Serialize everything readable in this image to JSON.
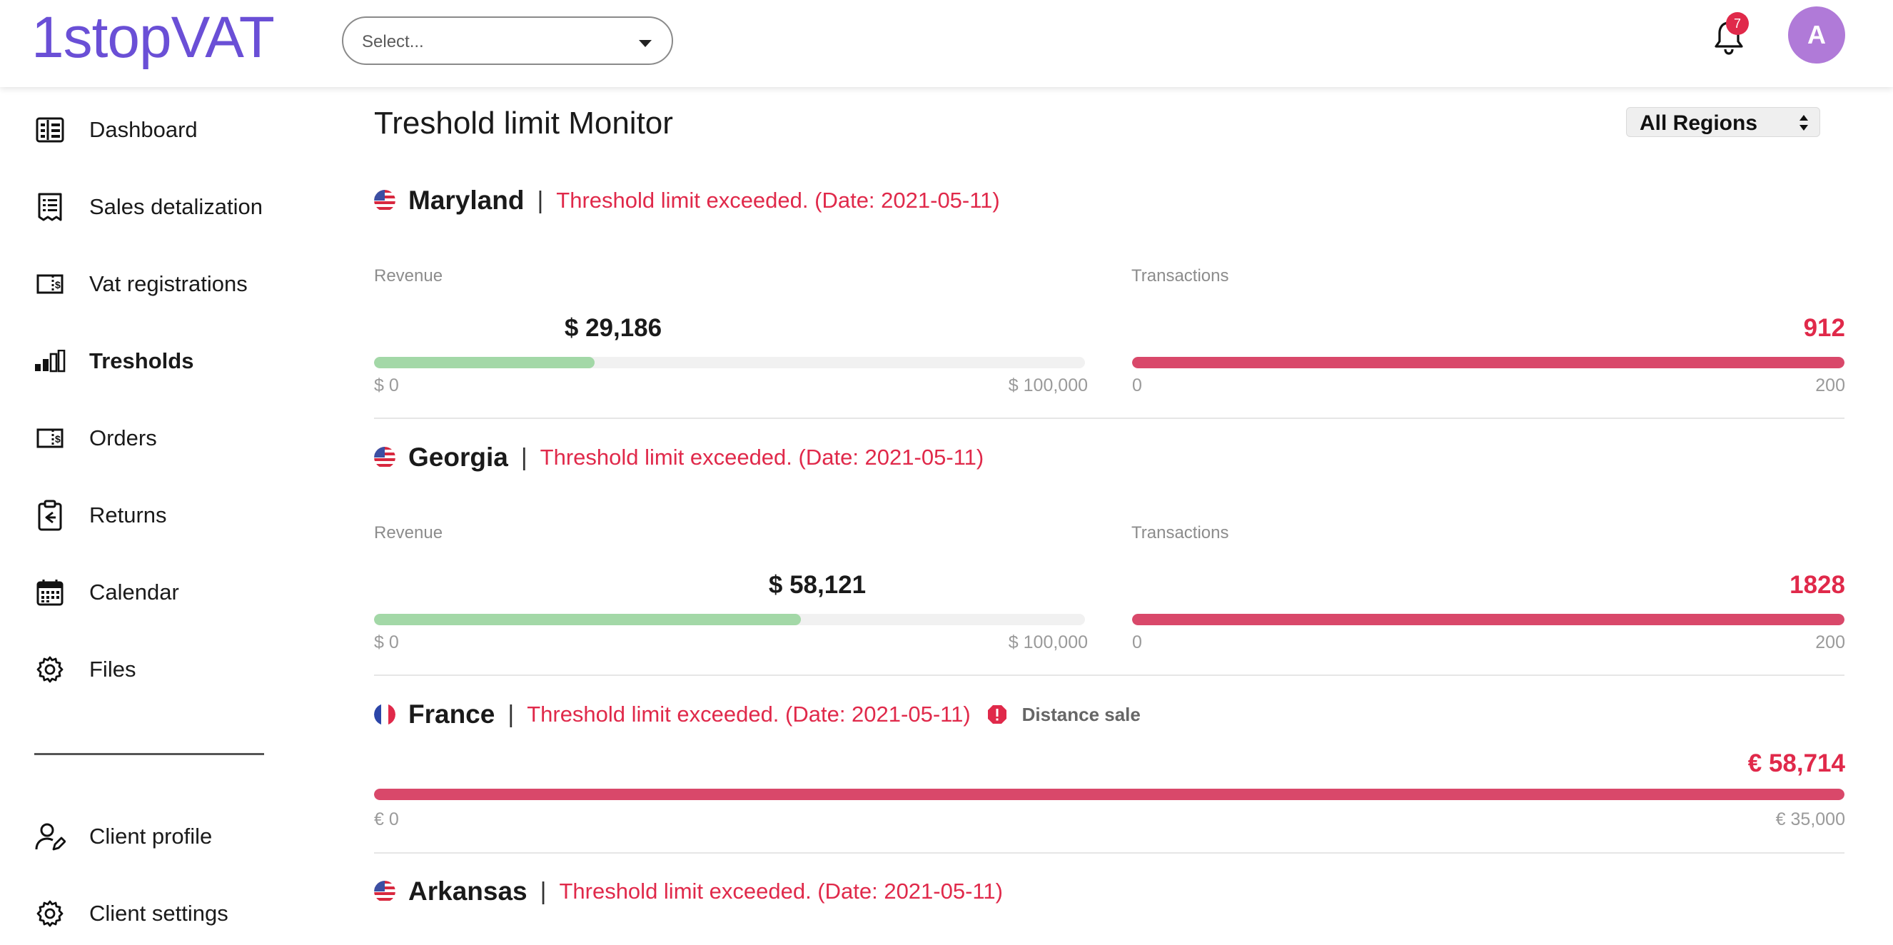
{
  "header": {
    "logo_text": "1stopVAT",
    "select_placeholder": "Select...",
    "notifications_count": "7",
    "avatar_initial": "A",
    "brand_color": "#6a4fd6"
  },
  "sidebar": {
    "items": [
      {
        "label": "Dashboard",
        "icon": "dashboard-icon",
        "active": false
      },
      {
        "label": "Sales detalization",
        "icon": "list-icon",
        "active": false
      },
      {
        "label": "Vat registrations",
        "icon": "invoice-icon",
        "active": false
      },
      {
        "label": "Tresholds",
        "icon": "bar-chart-icon",
        "active": true
      },
      {
        "label": "Orders",
        "icon": "invoice-icon",
        "active": false
      },
      {
        "label": "Returns",
        "icon": "return-icon",
        "active": false
      },
      {
        "label": "Calendar",
        "icon": "calendar-icon",
        "active": false
      },
      {
        "label": "Files",
        "icon": "gear-icon",
        "active": false
      }
    ],
    "bottom_items": [
      {
        "label": "Client profile",
        "icon": "user-edit-icon"
      },
      {
        "label": "Client settings",
        "icon": "gear-icon"
      }
    ]
  },
  "main": {
    "title": "Treshold limit Monitor",
    "region_filter": "All Regions",
    "separator": "|",
    "entries": [
      {
        "name": "Maryland",
        "flag": "us-flag-icon",
        "status": "Threshold limit exceeded. (Date: 2021-05-11)",
        "revenue": {
          "label": "Revenue",
          "value": "$ 29,186",
          "fraction": 0.31,
          "min": "$ 0",
          "max": "$ 100,000"
        },
        "transactions": {
          "label": "Transactions",
          "value": "912",
          "fraction": 1.0,
          "min": "0",
          "max": "200"
        }
      },
      {
        "name": "Georgia",
        "flag": "us-flag-icon",
        "status": "Threshold limit exceeded. (Date: 2021-05-11)",
        "revenue": {
          "label": "Revenue",
          "value": "$ 58,121",
          "fraction": 0.6,
          "min": "$ 0",
          "max": "$ 100,000"
        },
        "transactions": {
          "label": "Transactions",
          "value": "1828",
          "fraction": 1.0,
          "min": "0",
          "max": "200"
        }
      },
      {
        "name": "France",
        "flag": "fr-flag-icon",
        "status": "Threshold limit exceeded. (Date: 2021-05-11)",
        "tag": "Distance sale",
        "single": {
          "value": "€ 58,714",
          "fraction": 1.0,
          "min": "€ 0",
          "max": "€ 35,000"
        }
      },
      {
        "name": "Arkansas",
        "flag": "us-flag-icon",
        "status": "Threshold limit exceeded. (Date: 2021-05-11)"
      }
    ]
  },
  "colors": {
    "alert": "#e0294a",
    "bar_green": "#a3d8a7",
    "bar_red": "#d9486a"
  }
}
